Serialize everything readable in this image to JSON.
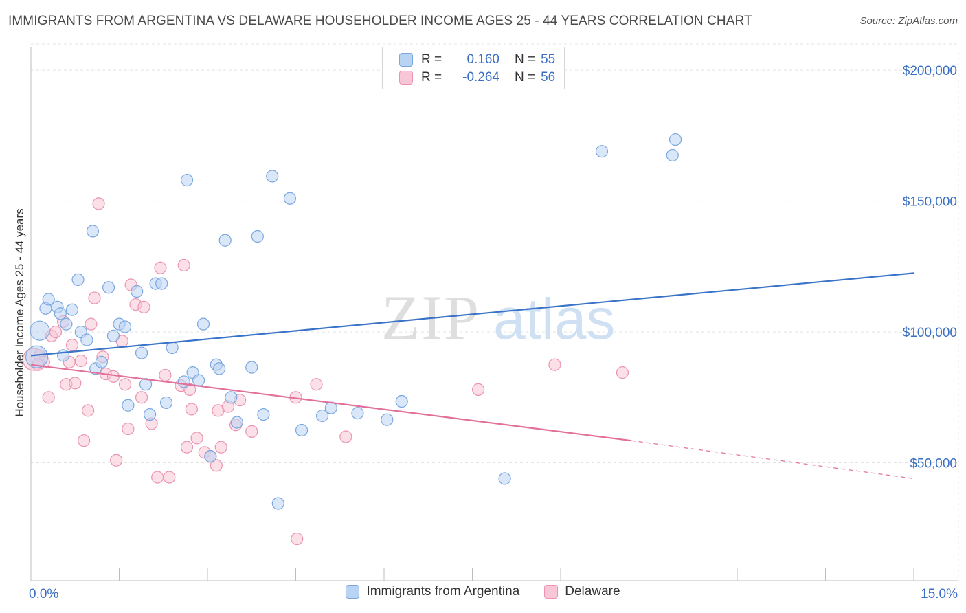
{
  "title": "IMMIGRANTS FROM ARGENTINA VS DELAWARE HOUSEHOLDER INCOME AGES 25 - 44 YEARS CORRELATION CHART",
  "source": "Source: ZipAtlas.com",
  "watermark": {
    "zip": "ZIP",
    "atlas": "atlas"
  },
  "legend_stats": [
    {
      "r_label": "R =",
      "r_value": "0.160",
      "n_label": "N =",
      "n_value": "55"
    },
    {
      "r_label": "R =",
      "r_value": "-0.264",
      "n_label": "N =",
      "n_value": "56"
    }
  ],
  "chart_data": {
    "type": "scatter",
    "title": "IMMIGRANTS FROM ARGENTINA VS DELAWARE HOUSEHOLDER INCOME AGES 25 - 44 YEARS CORRELATION CHART",
    "xlabel": "",
    "ylabel": "Householder Income Ages 25 - 44 years",
    "xlim": [
      0,
      15
    ],
    "ylim": [
      5000,
      210000
    ],
    "x_tick_labels": [
      "0.0%",
      "15.0%"
    ],
    "y_ticks": [
      50000,
      100000,
      150000,
      200000
    ],
    "y_tick_labels": [
      "$50,000",
      "$100,000",
      "$150,000",
      "$200,000"
    ],
    "grid": true,
    "legend_position": "bottom",
    "colors": {
      "blue_fill": "#b9d3f3",
      "blue_stroke": "#7aa7e0",
      "blue_line": "#3a74c8",
      "pink_fill": "#f8c6d6",
      "pink_stroke": "#eb93b1",
      "pink_line": "#e2709a",
      "tick_label": "#3a6fc4"
    },
    "series": [
      {
        "name": "Immigrants from Argentina",
        "color": "#b9d3f3",
        "trend": {
          "x": [
            0.0,
            15.0
          ],
          "y": [
            91000,
            122500
          ]
        },
        "points": [
          {
            "x": 0.15,
            "y": 100500,
            "s": 14
          },
          {
            "x": 0.1,
            "y": 90500,
            "s": 16
          },
          {
            "x": 0.25,
            "y": 109000
          },
          {
            "x": 0.3,
            "y": 112500
          },
          {
            "x": 0.45,
            "y": 109500
          },
          {
            "x": 0.5,
            "y": 107000
          },
          {
            "x": 0.6,
            "y": 103000
          },
          {
            "x": 0.7,
            "y": 108500
          },
          {
            "x": 0.8,
            "y": 120000
          },
          {
            "x": 0.85,
            "y": 100000
          },
          {
            "x": 0.95,
            "y": 97000
          },
          {
            "x": 1.05,
            "y": 138500
          },
          {
            "x": 1.1,
            "y": 86000
          },
          {
            "x": 1.2,
            "y": 88500
          },
          {
            "x": 1.32,
            "y": 117000
          },
          {
            "x": 1.4,
            "y": 98500
          },
          {
            "x": 1.5,
            "y": 103000
          },
          {
            "x": 1.6,
            "y": 102000
          },
          {
            "x": 1.65,
            "y": 72000
          },
          {
            "x": 1.8,
            "y": 115500
          },
          {
            "x": 1.88,
            "y": 92000
          },
          {
            "x": 1.95,
            "y": 80000
          },
          {
            "x": 2.02,
            "y": 68500
          },
          {
            "x": 2.12,
            "y": 118500
          },
          {
            "x": 2.22,
            "y": 118500
          },
          {
            "x": 2.3,
            "y": 73000
          },
          {
            "x": 2.4,
            "y": 94000
          },
          {
            "x": 2.6,
            "y": 81000
          },
          {
            "x": 2.65,
            "y": 158000
          },
          {
            "x": 2.75,
            "y": 84500
          },
          {
            "x": 2.85,
            "y": 81500
          },
          {
            "x": 2.93,
            "y": 103000
          },
          {
            "x": 3.05,
            "y": 52500
          },
          {
            "x": 3.15,
            "y": 87500
          },
          {
            "x": 3.2,
            "y": 86000
          },
          {
            "x": 3.3,
            "y": 135000
          },
          {
            "x": 3.4,
            "y": 75000
          },
          {
            "x": 3.5,
            "y": 65500
          },
          {
            "x": 3.75,
            "y": 86500
          },
          {
            "x": 3.85,
            "y": 136500
          },
          {
            "x": 3.95,
            "y": 68500
          },
          {
            "x": 4.1,
            "y": 159500
          },
          {
            "x": 4.2,
            "y": 34500
          },
          {
            "x": 4.4,
            "y": 151000
          },
          {
            "x": 4.6,
            "y": 62500
          },
          {
            "x": 4.95,
            "y": 68000
          },
          {
            "x": 5.1,
            "y": 71000
          },
          {
            "x": 5.55,
            "y": 69000
          },
          {
            "x": 6.05,
            "y": 66500
          },
          {
            "x": 6.3,
            "y": 73500
          },
          {
            "x": 8.05,
            "y": 44000
          },
          {
            "x": 9.7,
            "y": 169000
          },
          {
            "x": 10.9,
            "y": 167500
          },
          {
            "x": 10.95,
            "y": 173500
          },
          {
            "x": 0.55,
            "y": 91000
          }
        ]
      },
      {
        "name": "Delaware",
        "color": "#f8c6d6",
        "trend": {
          "x": [
            0.0,
            10.2
          ],
          "y": [
            87500,
            58500
          ]
        },
        "trend_dashed": {
          "x": [
            10.2,
            15.0
          ],
          "y": [
            58500,
            44000
          ]
        },
        "points": [
          {
            "x": 0.05,
            "y": 89500,
            "s": 16
          },
          {
            "x": 0.15,
            "y": 91000
          },
          {
            "x": 0.22,
            "y": 88500
          },
          {
            "x": 0.3,
            "y": 75000
          },
          {
            "x": 0.35,
            "y": 98500
          },
          {
            "x": 0.42,
            "y": 100000
          },
          {
            "x": 0.55,
            "y": 104000
          },
          {
            "x": 0.6,
            "y": 80000
          },
          {
            "x": 0.65,
            "y": 88500
          },
          {
            "x": 0.7,
            "y": 95000
          },
          {
            "x": 0.75,
            "y": 80500
          },
          {
            "x": 0.85,
            "y": 89000
          },
          {
            "x": 0.9,
            "y": 58500
          },
          {
            "x": 0.97,
            "y": 70000
          },
          {
            "x": 1.02,
            "y": 103000
          },
          {
            "x": 1.08,
            "y": 113000
          },
          {
            "x": 1.15,
            "y": 149000
          },
          {
            "x": 1.22,
            "y": 90500
          },
          {
            "x": 1.27,
            "y": 84000
          },
          {
            "x": 1.4,
            "y": 83000
          },
          {
            "x": 1.45,
            "y": 51000
          },
          {
            "x": 1.55,
            "y": 96500
          },
          {
            "x": 1.6,
            "y": 80000
          },
          {
            "x": 1.65,
            "y": 63000
          },
          {
            "x": 1.7,
            "y": 118000
          },
          {
            "x": 1.78,
            "y": 110500
          },
          {
            "x": 1.88,
            "y": 75000
          },
          {
            "x": 1.92,
            "y": 109500
          },
          {
            "x": 2.05,
            "y": 65000
          },
          {
            "x": 2.15,
            "y": 44500
          },
          {
            "x": 2.2,
            "y": 124500
          },
          {
            "x": 2.28,
            "y": 83500
          },
          {
            "x": 2.35,
            "y": 44500
          },
          {
            "x": 2.55,
            "y": 79500
          },
          {
            "x": 2.6,
            "y": 125500
          },
          {
            "x": 2.65,
            "y": 56000
          },
          {
            "x": 2.7,
            "y": 78000
          },
          {
            "x": 2.73,
            "y": 70500
          },
          {
            "x": 2.82,
            "y": 59500
          },
          {
            "x": 2.95,
            "y": 54000
          },
          {
            "x": 3.05,
            "y": 52500
          },
          {
            "x": 3.15,
            "y": 49000
          },
          {
            "x": 3.18,
            "y": 70000
          },
          {
            "x": 3.23,
            "y": 56000
          },
          {
            "x": 3.35,
            "y": 71500
          },
          {
            "x": 3.48,
            "y": 64500
          },
          {
            "x": 3.55,
            "y": 74000
          },
          {
            "x": 3.75,
            "y": 62000
          },
          {
            "x": 4.5,
            "y": 75000
          },
          {
            "x": 4.52,
            "y": 21000
          },
          {
            "x": 4.85,
            "y": 80000
          },
          {
            "x": 5.35,
            "y": 60000
          },
          {
            "x": 7.6,
            "y": 78000
          },
          {
            "x": 8.9,
            "y": 87500
          },
          {
            "x": 10.05,
            "y": 84500
          },
          {
            "x": 0.12,
            "y": 87500
          }
        ]
      }
    ]
  }
}
